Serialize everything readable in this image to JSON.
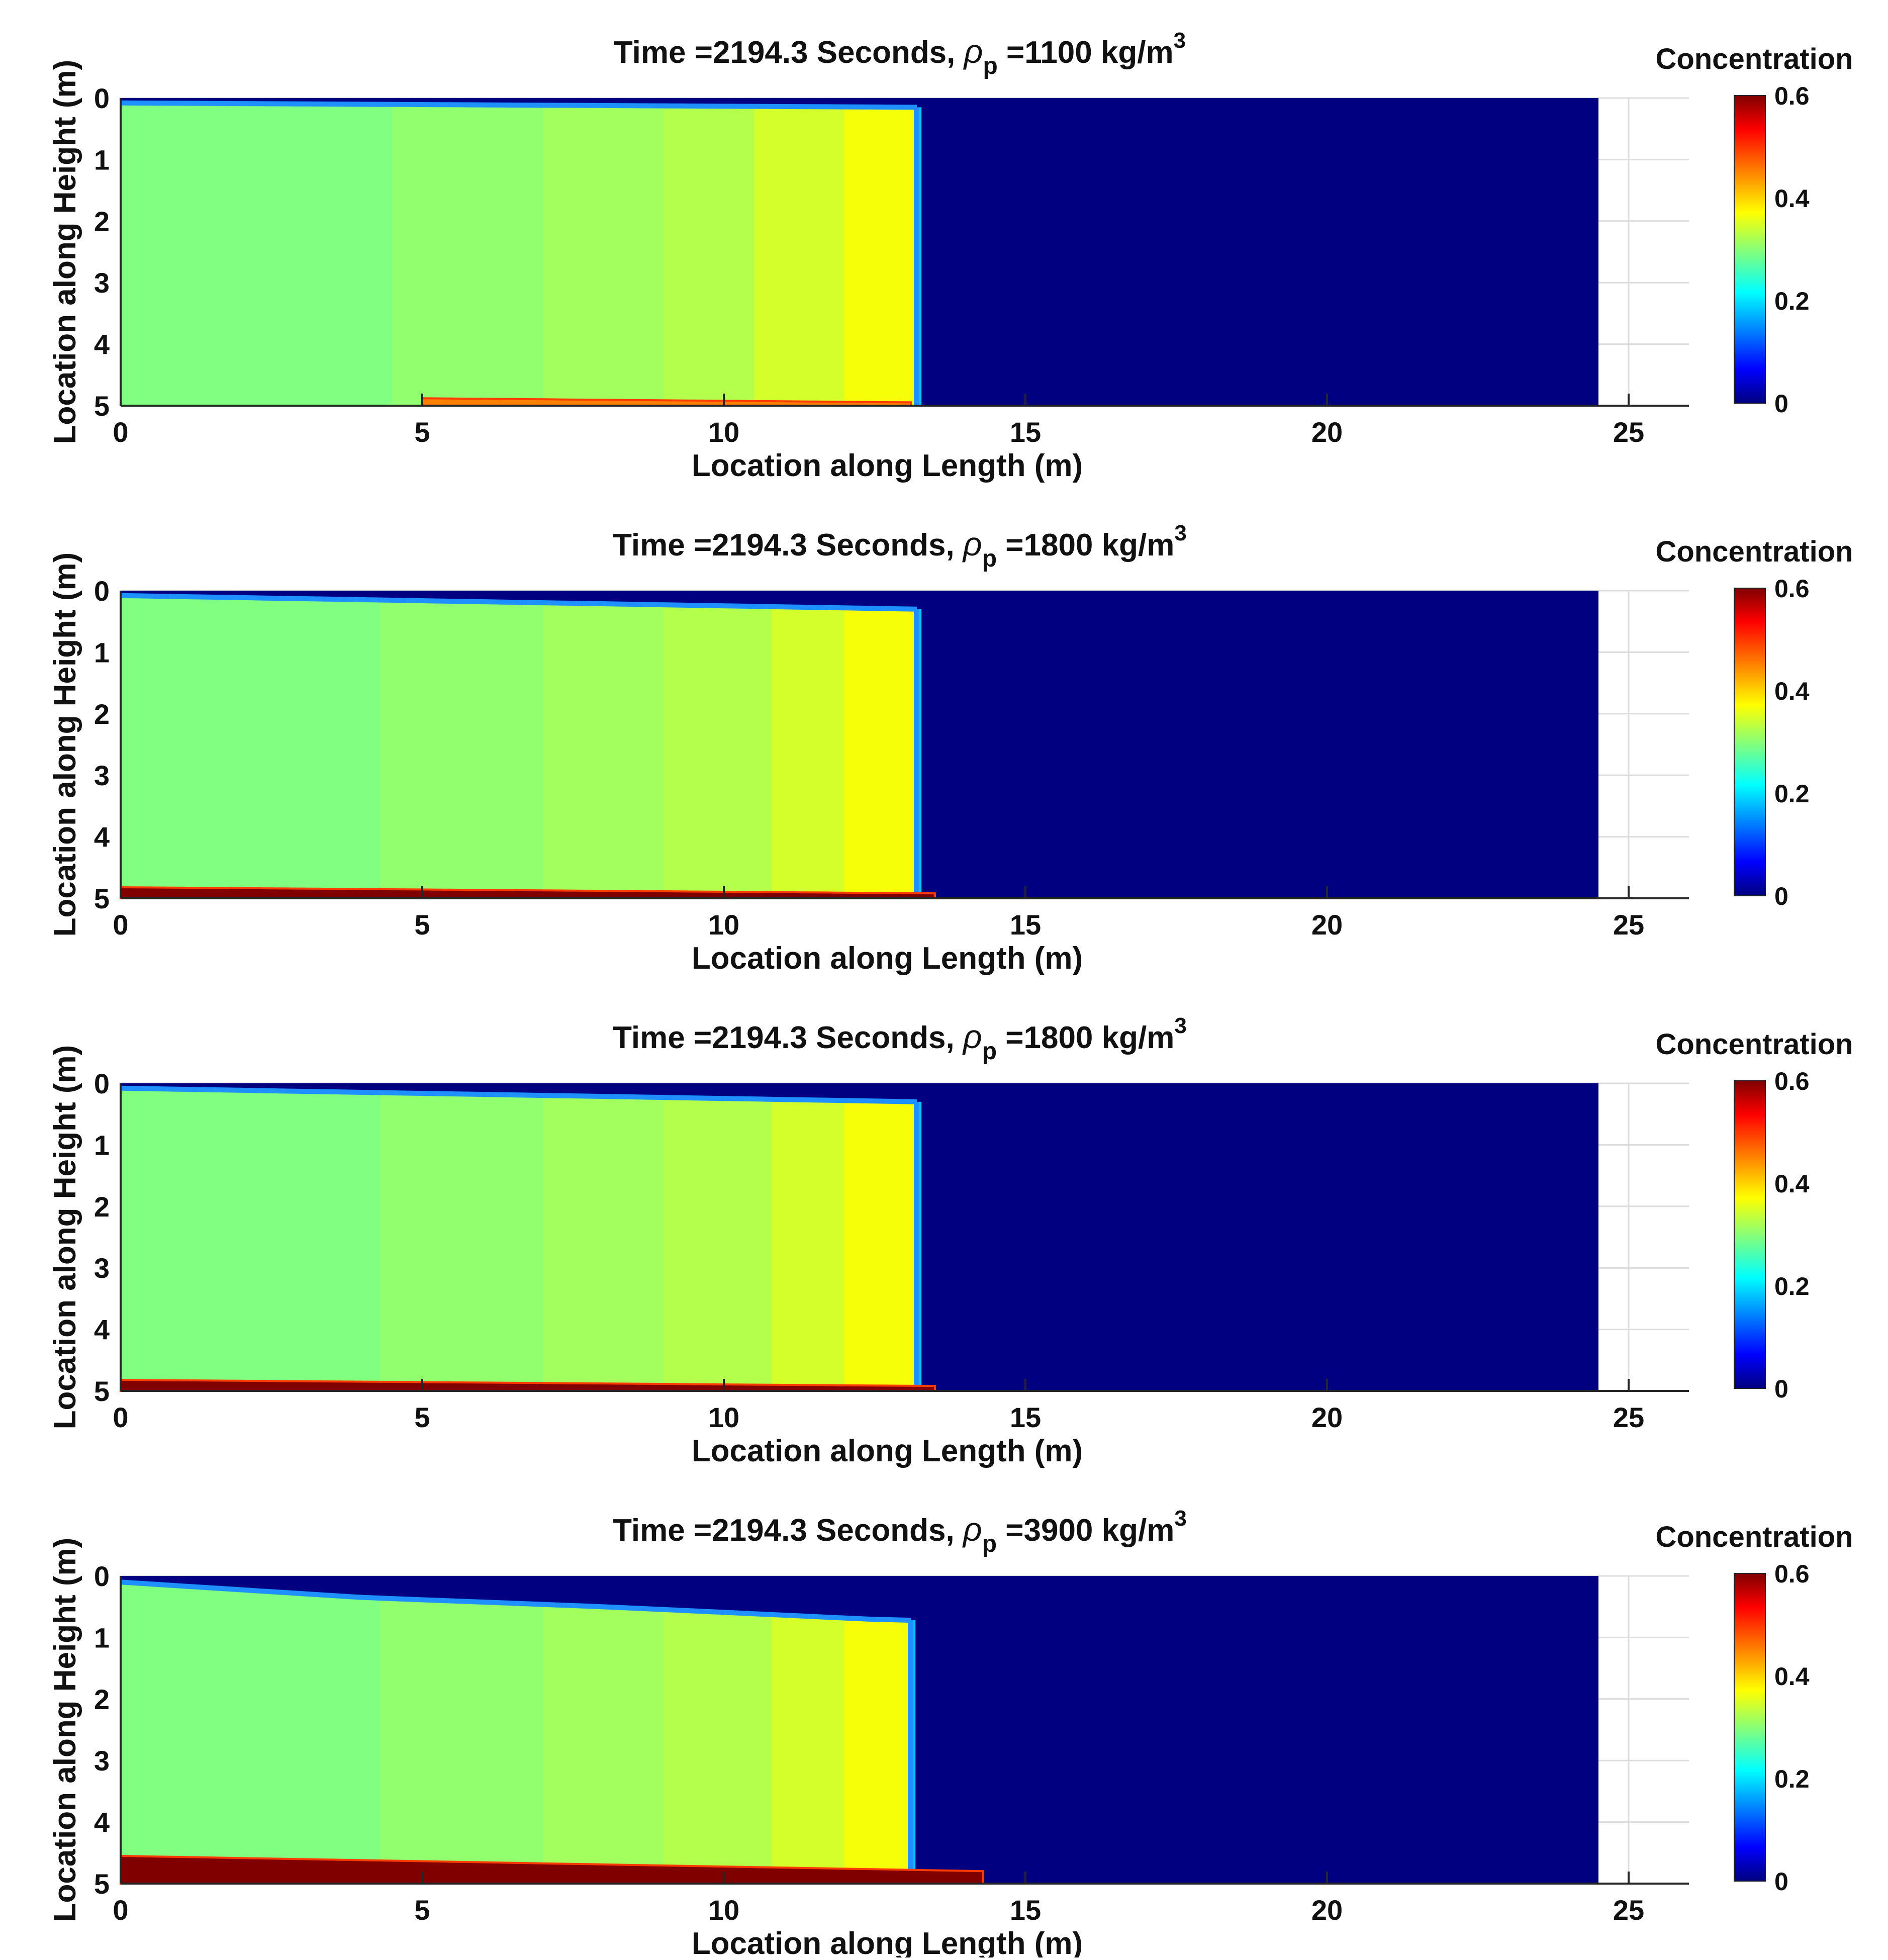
{
  "figure": {
    "common": {
      "xlabel": "Location along Length (m)",
      "ylabel": "Location along Height (m)",
      "colorbar_label": "Concentration",
      "xlim": [
        0,
        26
      ],
      "ylim": [
        0,
        5
      ],
      "x_ticks": [
        "0",
        "5",
        "10",
        "15",
        "20",
        "25"
      ],
      "y_ticks": [
        "0",
        "1",
        "2",
        "3",
        "4",
        "5"
      ],
      "colorbar_ticks": [
        "0.6",
        "0.4",
        "0.2",
        "0"
      ],
      "colorbar_range": [
        0,
        0.6
      ],
      "colormap": "jet"
    },
    "panels": [
      {
        "title_prefix": "Time =2194.3 Seconds, ",
        "rho_symbol": "ρ",
        "rho_sub": "p",
        "rho_value": " =1100 kg/m",
        "rho_unit_sup": "3"
      },
      {
        "title_prefix": "Time =2194.3 Seconds, ",
        "rho_symbol": "ρ",
        "rho_sub": "p",
        "rho_value": " =1800 kg/m",
        "rho_unit_sup": "3"
      },
      {
        "title_prefix": "Time =2194.3 Seconds, ",
        "rho_symbol": "ρ",
        "rho_sub": "p",
        "rho_value": " =1800 kg/m",
        "rho_unit_sup": "3"
      },
      {
        "title_prefix": "Time =2194.3 Seconds, ",
        "rho_symbol": "ρ",
        "rho_sub": "p",
        "rho_value": " =3900 kg/m",
        "rho_unit_sup": "3"
      }
    ]
  },
  "chart_data": [
    {
      "type": "heatmap",
      "title": "Time =2194.3 Seconds, ρp =1100 kg/m3",
      "xlabel": "Location along Length (m)",
      "ylabel": "Location along Height (m)",
      "xlim": [
        0,
        26
      ],
      "ylim": [
        0,
        5
      ],
      "domain_length": 24.5,
      "colorbar_range": [
        0,
        0.6
      ],
      "current_front_x": 13.2,
      "current_top_y": [
        [
          0,
          0.08
        ],
        [
          13.2,
          0.15
        ]
      ],
      "concentration_bands": [
        {
          "x0": 0,
          "x1": 4.5,
          "value": 0.3
        },
        {
          "x0": 4.5,
          "x1": 7,
          "value": 0.31
        },
        {
          "x0": 7,
          "x1": 9,
          "value": 0.32
        },
        {
          "x0": 9,
          "x1": 10.5,
          "value": 0.33
        },
        {
          "x0": 10.5,
          "x1": 12,
          "value": 0.35
        },
        {
          "x0": 12,
          "x1": 13.2,
          "value": 0.37
        }
      ],
      "deposit_layer": {
        "x_start": 5,
        "x_end": 13.1,
        "max_thickness": 0.12,
        "value": 0.45
      },
      "ambient_value": 0
    },
    {
      "type": "heatmap",
      "title": "Time =2194.3 Seconds, ρp =1800 kg/m3",
      "xlabel": "Location along Length (m)",
      "ylabel": "Location along Height (m)",
      "xlim": [
        0,
        26
      ],
      "ylim": [
        0,
        5
      ],
      "domain_length": 24.5,
      "colorbar_range": [
        0,
        0.6
      ],
      "current_front_x": 13.2,
      "current_top_y": [
        [
          0,
          0.08
        ],
        [
          13.2,
          0.3
        ]
      ],
      "concentration_bands": [
        {
          "x0": 0,
          "x1": 4.3,
          "value": 0.3
        },
        {
          "x0": 4.3,
          "x1": 7,
          "value": 0.31
        },
        {
          "x0": 7,
          "x1": 9,
          "value": 0.32
        },
        {
          "x0": 9,
          "x1": 10.8,
          "value": 0.33
        },
        {
          "x0": 10.8,
          "x1": 12,
          "value": 0.35
        },
        {
          "x0": 12,
          "x1": 13.2,
          "value": 0.37
        }
      ],
      "deposit_layer": {
        "x_start": 0,
        "x_end": 13.5,
        "max_thickness": 0.18,
        "value": 0.6
      },
      "ambient_value": 0
    },
    {
      "type": "heatmap",
      "title": "Time =2194.3 Seconds, ρp =1800 kg/m3",
      "xlabel": "Location along Length (m)",
      "ylabel": "Location along Height (m)",
      "xlim": [
        0,
        26
      ],
      "ylim": [
        0,
        5
      ],
      "domain_length": 24.5,
      "colorbar_range": [
        0,
        0.6
      ],
      "current_front_x": 13.2,
      "current_top_y": [
        [
          0,
          0.08
        ],
        [
          13.2,
          0.3
        ]
      ],
      "concentration_bands": [
        {
          "x0": 0,
          "x1": 4.3,
          "value": 0.3
        },
        {
          "x0": 4.3,
          "x1": 7,
          "value": 0.31
        },
        {
          "x0": 7,
          "x1": 9,
          "value": 0.32
        },
        {
          "x0": 9,
          "x1": 10.8,
          "value": 0.33
        },
        {
          "x0": 10.8,
          "x1": 12,
          "value": 0.35
        },
        {
          "x0": 12,
          "x1": 13.2,
          "value": 0.37
        }
      ],
      "deposit_layer": {
        "x_start": 0,
        "x_end": 13.5,
        "max_thickness": 0.18,
        "value": 0.6
      },
      "ambient_value": 0
    },
    {
      "type": "heatmap",
      "title": "Time =2194.3 Seconds, ρp =3900 kg/m3",
      "xlabel": "Location along Length (m)",
      "ylabel": "Location along Height (m)",
      "xlim": [
        0,
        26
      ],
      "ylim": [
        0,
        5
      ],
      "domain_length": 24.5,
      "colorbar_range": [
        0,
        0.6
      ],
      "current_front_x": 13.1,
      "current_top_y": [
        [
          0,
          0.1
        ],
        [
          4,
          0.35
        ],
        [
          8,
          0.5
        ],
        [
          12.8,
          0.72
        ]
      ],
      "concentration_bands": [
        {
          "x0": 0,
          "x1": 4.3,
          "value": 0.3
        },
        {
          "x0": 4.3,
          "x1": 7,
          "value": 0.31
        },
        {
          "x0": 7,
          "x1": 9,
          "value": 0.32
        },
        {
          "x0": 9,
          "x1": 10.8,
          "value": 0.33
        },
        {
          "x0": 10.8,
          "x1": 12,
          "value": 0.35
        },
        {
          "x0": 12,
          "x1": 13.1,
          "value": 0.37
        }
      ],
      "deposit_layer": {
        "x_start": 0,
        "x_end": 14.3,
        "max_thickness": 0.45,
        "value": 0.6
      },
      "ambient_value": 0
    }
  ]
}
